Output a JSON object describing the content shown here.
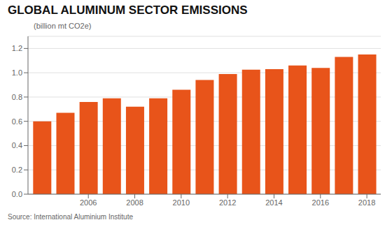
{
  "chart_data": {
    "type": "bar",
    "title": "GLOBAL ALUMINUM SECTOR EMISSIONS",
    "subtitle": "(billion mt CO2e)",
    "source": "Source: International Aluminium Institute",
    "x": [
      2004,
      2005,
      2006,
      2007,
      2008,
      2009,
      2010,
      2011,
      2012,
      2013,
      2014,
      2015,
      2016,
      2017,
      2018
    ],
    "values": [
      0.6,
      0.67,
      0.76,
      0.79,
      0.72,
      0.79,
      0.86,
      0.94,
      0.99,
      1.025,
      1.03,
      1.06,
      1.04,
      1.13,
      1.15
    ],
    "color": "#E8541A",
    "xlim": [
      2003.4,
      2018.6
    ],
    "xticks": [
      2006,
      2008,
      2010,
      2012,
      2014,
      2016,
      2018
    ],
    "ylim": [
      0,
      1.3
    ],
    "yticks": [
      {
        "value": 0.0,
        "label": "0.0"
      },
      0.2,
      0.4,
      0.6,
      0.8,
      {
        "value": 1.0,
        "label": "1.0"
      },
      1.2
    ],
    "grid": true
  }
}
